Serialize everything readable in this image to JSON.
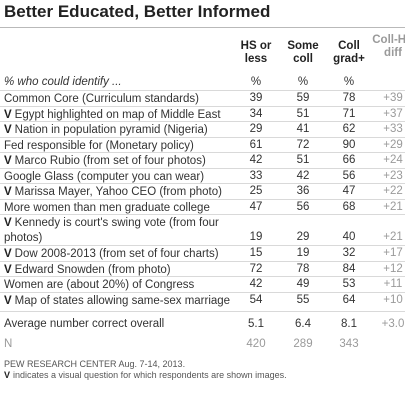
{
  "chart_data": {
    "type": "table",
    "title": "Better Educated, Better Informed",
    "columns": [
      "HS or less",
      "Some coll",
      "Coll grad+",
      "Coll-HS diff"
    ],
    "intro": "% who could identify ...",
    "units_row": [
      "%",
      "%",
      "%",
      ""
    ],
    "rows": [
      {
        "visual": false,
        "label": "Common Core (Curriculum standards)",
        "values": [
          "39",
          "59",
          "78"
        ],
        "diff": "+39"
      },
      {
        "visual": true,
        "label": "Egypt highlighted on map of Middle East",
        "values": [
          "34",
          "51",
          "71"
        ],
        "diff": "+37"
      },
      {
        "visual": true,
        "label": "Nation in population pyramid (Nigeria)",
        "values": [
          "29",
          "41",
          "62"
        ],
        "diff": "+33"
      },
      {
        "visual": false,
        "label": "Fed responsible for (Monetary policy)",
        "values": [
          "61",
          "72",
          "90"
        ],
        "diff": "+29"
      },
      {
        "visual": true,
        "label": "Marco Rubio (from set of four photos)",
        "values": [
          "42",
          "51",
          "66"
        ],
        "diff": "+24"
      },
      {
        "visual": false,
        "label": "Google Glass (computer you can wear)",
        "values": [
          "33",
          "42",
          "56"
        ],
        "diff": "+23"
      },
      {
        "visual": true,
        "label": "Marissa Mayer, Yahoo CEO (from photo)",
        "values": [
          "25",
          "36",
          "47"
        ],
        "diff": "+22"
      },
      {
        "visual": false,
        "label": "More women than men graduate college",
        "values": [
          "47",
          "56",
          "68"
        ],
        "diff": "+21"
      },
      {
        "visual": true,
        "label": "Kennedy is court's swing vote (from four photos)",
        "values": [
          "19",
          "29",
          "40"
        ],
        "diff": "+21"
      },
      {
        "visual": true,
        "label": "Dow 2008-2013 (from set of four charts)",
        "values": [
          "15",
          "19",
          "32"
        ],
        "diff": "+17"
      },
      {
        "visual": true,
        "label": "Edward Snowden (from photo)",
        "values": [
          "72",
          "78",
          "84"
        ],
        "diff": "+12"
      },
      {
        "visual": false,
        "label": "Women are (about 20%) of Congress",
        "values": [
          "42",
          "49",
          "53"
        ],
        "diff": "+11"
      },
      {
        "visual": true,
        "label": "Map of states allowing same-sex marriage",
        "values": [
          "54",
          "55",
          "64"
        ],
        "diff": "+10"
      }
    ],
    "average": {
      "label": "Average number correct overall",
      "values": [
        "5.1",
        "6.4",
        "8.1"
      ],
      "diff": "+3.0"
    },
    "n": {
      "label": "N",
      "values": [
        "420",
        "289",
        "343"
      ]
    },
    "visual_marker": "V",
    "source": "PEW RESEARCH CENTER Aug. 7-14, 2013.",
    "note": "indicates a visual question for which respondents are shown images."
  }
}
